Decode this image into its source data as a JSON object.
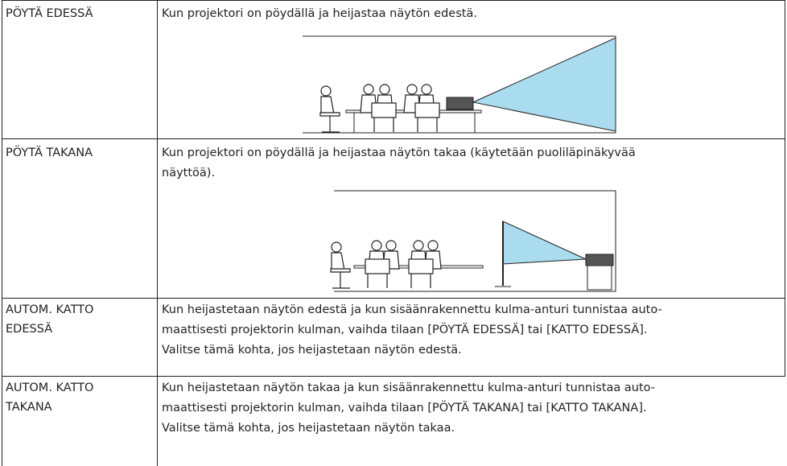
{
  "table": {
    "rows": [
      {
        "label": "PÖYTÄ EDESSÄ",
        "lines": [
          "Kun projektori on pöydällä ja heijastaa näytön edestä."
        ]
      },
      {
        "label": "PÖYTÄ TAKANA",
        "lines": [
          "Kun projektori on pöydällä ja heijastaa näytön takaa (käytetään puoliläpinäkyvää",
          "näyttöä)."
        ]
      },
      {
        "label_lines": [
          "AUTOM. KATTO",
          "EDESSÄ"
        ],
        "lines": [
          "Kun heijastetaan näytön edestä ja kun sisäänrakennettu kulma-anturi tunnistaa auto-",
          "maattisesti projektorin kulman, vaihda tilaan [PÖYTÄ EDESSÄ] tai [KATTO EDESSÄ].",
          "Valitse tämä kohta, jos heijastetaan näytön edestä."
        ]
      },
      {
        "label_lines": [
          "AUTOM. KATTO",
          "TAKANA"
        ],
        "lines": [
          "Kun heijastetaan näytön takaa ja kun sisäänrakennettu kulma-anturi tunnistaa auto-",
          "maattisesti projektorin kulman, vaihda tilaan [PÖYTÄ TAKANA] tai [KATTO TAKANA].",
          "Valitse tämä kohta, jos heijastetaan näytön takaa."
        ]
      }
    ]
  }
}
